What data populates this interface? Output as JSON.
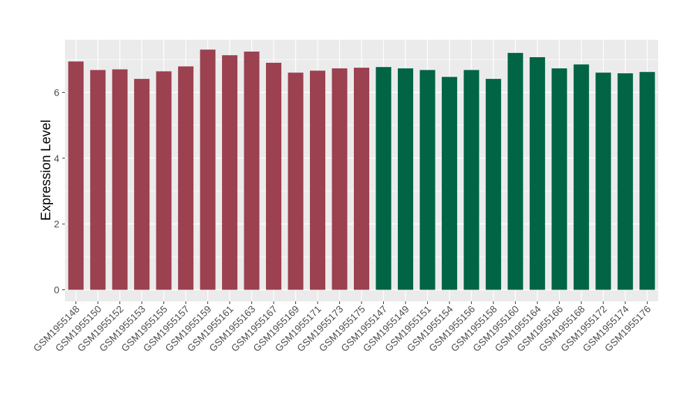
{
  "chart_data": {
    "type": "bar",
    "title": "",
    "xlabel": "",
    "ylabel": "Expression Level",
    "ylim": [
      -0.35,
      7.6
    ],
    "yticks": [
      0,
      2,
      4,
      6
    ],
    "grid": true,
    "categories": [
      "GSM1955148",
      "GSM1955150",
      "GSM1955152",
      "GSM1955153",
      "GSM1955155",
      "GSM1955157",
      "GSM1955159",
      "GSM1955161",
      "GSM1955163",
      "GSM1955167",
      "GSM1955169",
      "GSM1955171",
      "GSM1955173",
      "GSM1955175",
      "GSM1955147",
      "GSM1955149",
      "GSM1955151",
      "GSM1955154",
      "GSM1955156",
      "GSM1955158",
      "GSM1955160",
      "GSM1955164",
      "GSM1955166",
      "GSM1955168",
      "GSM1955172",
      "GSM1955174",
      "GSM1955176"
    ],
    "values": [
      6.94,
      6.68,
      6.7,
      6.41,
      6.64,
      6.79,
      7.3,
      7.13,
      7.24,
      6.9,
      6.6,
      6.66,
      6.73,
      6.75,
      6.77,
      6.73,
      6.68,
      6.47,
      6.68,
      6.41,
      7.2,
      7.07,
      6.73,
      6.85,
      6.6,
      6.58,
      6.62
    ],
    "group_sizes": [
      14,
      13
    ],
    "colors": [
      "#9b4150",
      "#006445"
    ],
    "panel_background": "#ebebeb"
  }
}
